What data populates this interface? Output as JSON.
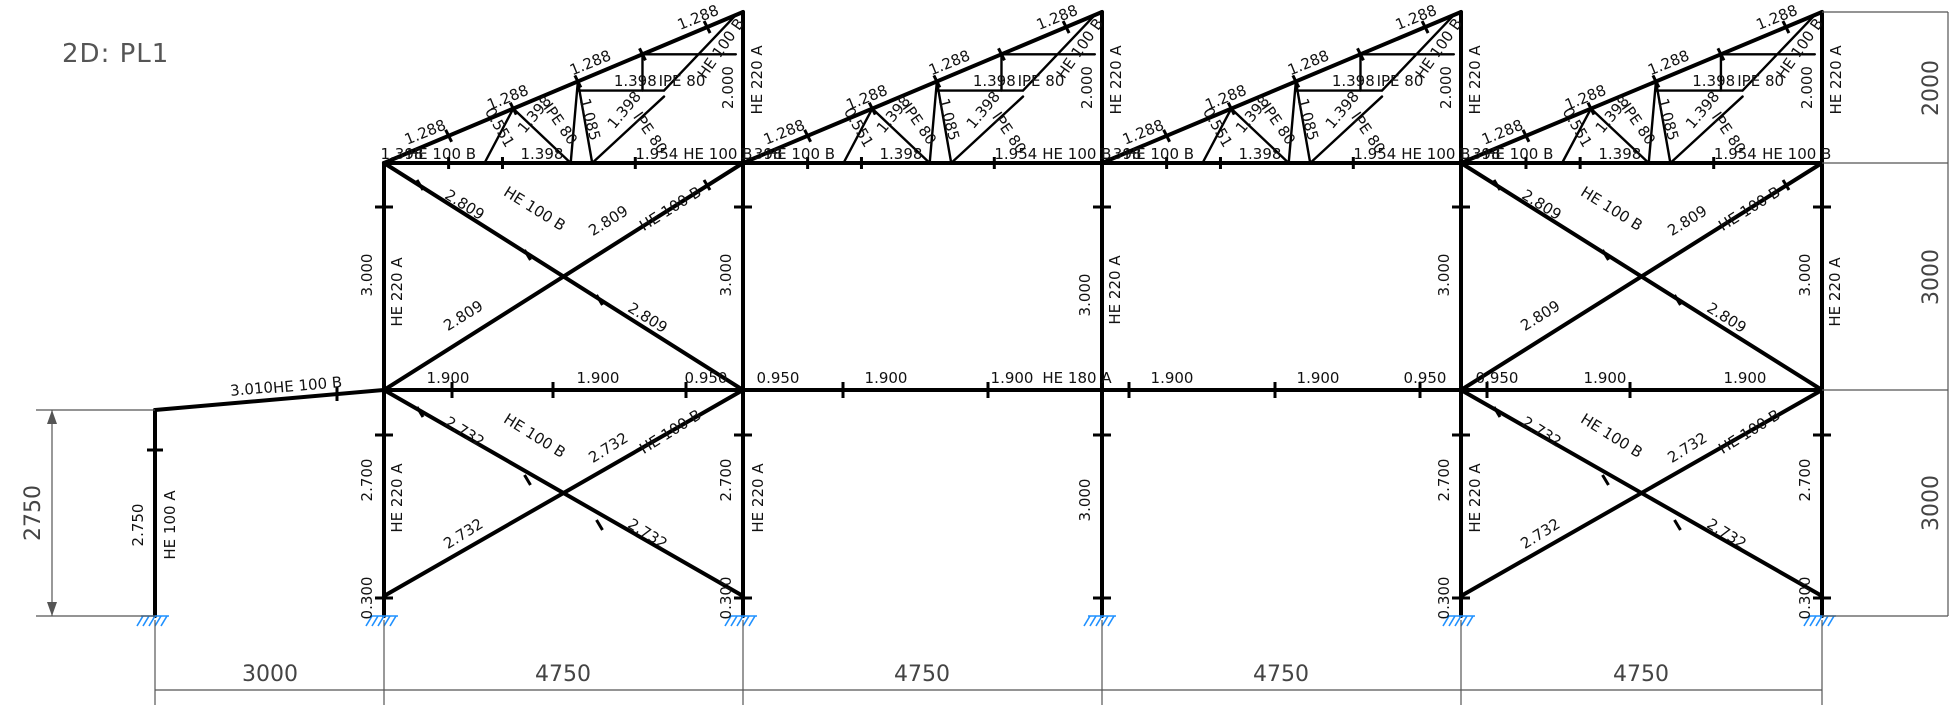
{
  "view_title": "2D:  PL1",
  "colors": {
    "members": "#000000",
    "supports": "#1e90ff",
    "dimensions": "#555555"
  },
  "bay_widths": [
    "3000",
    "4750",
    "4750",
    "4750",
    "4750"
  ],
  "level_heights": [
    "2000",
    "3000",
    "3000"
  ],
  "left_height": "2750",
  "sections": {
    "column": "HE 220 A",
    "small_column": "HE 100 A",
    "brace": "HE 100 B",
    "beam": "HE 180 A",
    "truss_chord": "HE 100 B",
    "truss_web": "IPE 80"
  },
  "lengths": {
    "rafter_segment": "1.288",
    "web_diagonal": "1.398",
    "web_vertical": "1.085",
    "web_short": "0.551",
    "chord_end": "1.398",
    "chord_mid": "1.954",
    "roof_post": "2.000",
    "upper_column": "3.000",
    "lower_column": "2.700",
    "base_stub": "0.300",
    "ground_column": "3.000",
    "upper_brace": "2.809",
    "lower_brace": "2.732",
    "beam_segment": "1.900",
    "beam_end": "0.950",
    "lean_beam": "3.010",
    "lean_column": "2.750"
  }
}
